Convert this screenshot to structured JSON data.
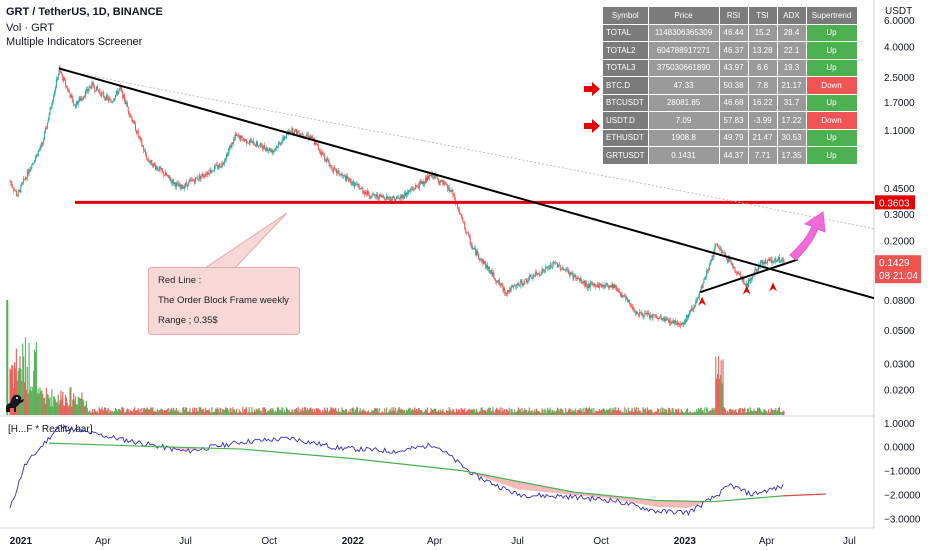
{
  "header": {
    "title": "GRT / TetherUS, 1D, BINANCE",
    "vol_label": "Vol · GRT",
    "screener_label": "Multiple Indicators Screener"
  },
  "indicator": {
    "label": "[H...F * Reality bar]"
  },
  "callout": {
    "line1": "Red Line :",
    "line2": "The Order Block Frame weekly",
    "line3": "Range ; 0.35$"
  },
  "price_axis": {
    "currency": "USDT",
    "ticks": [
      "6.0000",
      "4.0000",
      "2.5000",
      "1.7000",
      "1.1000",
      "0.4500",
      "0.3000",
      "0.2000",
      "0.0800",
      "0.0500",
      "0.0300",
      "0.0200"
    ],
    "red_line_price": "0.3603",
    "last_price": "0.1429",
    "countdown": "08:21:04"
  },
  "indicator_axis": {
    "ticks": [
      "1.0000",
      "0.0000",
      "−1.0000",
      "−2.0000",
      "−3.0000"
    ]
  },
  "time_axis": {
    "labels": [
      "2021",
      "Apr",
      "Jul",
      "Oct",
      "2022",
      "Apr",
      "Jul",
      "Oct",
      "2023",
      "Apr",
      "Jul"
    ]
  },
  "screener": {
    "headers": [
      "Symbol",
      "Price",
      "RSI",
      "TSI",
      "ADX",
      "Supertrend"
    ],
    "rows": [
      {
        "symbol": "TOTAL",
        "price": "1148306365309",
        "rsi": "46.44",
        "tsi": "15.2",
        "adx": "28.4",
        "trend": "Up"
      },
      {
        "symbol": "TOTAL2",
        "price": "604788917271",
        "rsi": "46.37",
        "tsi": "13.28",
        "adx": "22.1",
        "trend": "Up"
      },
      {
        "symbol": "TOTAL3",
        "price": "375030661890",
        "rsi": "43.97",
        "tsi": "6.6",
        "adx": "19.3",
        "trend": "Up"
      },
      {
        "symbol": "BTC.D",
        "price": "47.33",
        "rsi": "50.38",
        "tsi": "7.8",
        "adx": "21.17",
        "trend": "Down"
      },
      {
        "symbol": "BTCUSDT",
        "price": "28081.85",
        "rsi": "46.68",
        "tsi": "16.22",
        "adx": "31.7",
        "trend": "Up"
      },
      {
        "symbol": "USDT.D",
        "price": "7.09",
        "rsi": "57.83",
        "tsi": "-3.99",
        "adx": "17.22",
        "trend": "Down"
      },
      {
        "symbol": "ETHUSDT",
        "price": "1908.8",
        "rsi": "49.79",
        "tsi": "21.47",
        "adx": "30.53",
        "trend": "Up"
      },
      {
        "symbol": "GRTUSDT",
        "price": "0.1431",
        "rsi": "44.37",
        "tsi": "7.71",
        "adx": "17.35",
        "trend": "Up"
      }
    ]
  },
  "colors": {
    "up_candle": "#26a69a",
    "down_candle": "#ef5350",
    "volume_up": "#4caf50",
    "volume_down": "#ef5350",
    "red_line": "#e60000",
    "trendline": "#000000",
    "arrow_pink": "#f06bd8",
    "indicator_blue": "#2f2fd6",
    "indicator_green": "#4caf50",
    "indicator_fill": "#f4a3a3"
  },
  "chart_data": {
    "type": "candlestick",
    "title": "GRT / TetherUS, 1D, BINANCE",
    "scale": "log",
    "y_range": [
      0.015,
      8
    ],
    "x_labels": [
      "2021",
      "Apr",
      "Jul",
      "Oct",
      "2022",
      "Apr",
      "Jul",
      "Oct",
      "2023",
      "Apr",
      "Jul"
    ],
    "price_path": [
      {
        "date": "2020-12-20",
        "close": 0.5
      },
      {
        "date": "2020-12-28",
        "close": 0.4
      },
      {
        "date": "2021-01-10",
        "close": 0.6
      },
      {
        "date": "2021-01-25",
        "close": 0.9
      },
      {
        "date": "2021-02-12",
        "close": 2.8
      },
      {
        "date": "2021-03-01",
        "close": 1.6
      },
      {
        "date": "2021-03-20",
        "close": 2.2
      },
      {
        "date": "2021-04-10",
        "close": 1.7
      },
      {
        "date": "2021-04-20",
        "close": 2.1
      },
      {
        "date": "2021-05-20",
        "close": 0.7
      },
      {
        "date": "2021-06-25",
        "close": 0.45
      },
      {
        "date": "2021-08-10",
        "close": 0.65
      },
      {
        "date": "2021-08-25",
        "close": 1.0
      },
      {
        "date": "2021-10-05",
        "close": 0.8
      },
      {
        "date": "2021-10-25",
        "close": 1.1
      },
      {
        "date": "2021-11-15",
        "close": 1.0
      },
      {
        "date": "2021-12-10",
        "close": 0.6
      },
      {
        "date": "2022-01-20",
        "close": 0.4
      },
      {
        "date": "2022-02-20",
        "close": 0.38
      },
      {
        "date": "2022-03-30",
        "close": 0.55
      },
      {
        "date": "2022-04-20",
        "close": 0.42
      },
      {
        "date": "2022-05-12",
        "close": 0.18
      },
      {
        "date": "2022-06-18",
        "close": 0.09
      },
      {
        "date": "2022-08-12",
        "close": 0.14
      },
      {
        "date": "2022-09-15",
        "close": 0.1
      },
      {
        "date": "2022-10-15",
        "close": 0.1
      },
      {
        "date": "2022-11-10",
        "close": 0.065
      },
      {
        "date": "2022-12-30",
        "close": 0.055
      },
      {
        "date": "2023-01-15",
        "close": 0.08
      },
      {
        "date": "2023-02-05",
        "close": 0.19
      },
      {
        "date": "2023-03-10",
        "close": 0.1
      },
      {
        "date": "2023-03-25",
        "close": 0.14
      },
      {
        "date": "2023-04-12",
        "close": 0.15
      },
      {
        "date": "2023-04-20",
        "close": 0.1429
      }
    ],
    "horizontal_line": {
      "price": 0.3603,
      "label": "0.3603"
    },
    "indicator": {
      "label": "[H...F * Reality bar]",
      "y_range": [
        -3.2,
        1.2
      ],
      "y_ticks": [
        1,
        0,
        -1,
        -2,
        -3
      ],
      "blue_path": [
        {
          "date": "2020-12-20",
          "value": -2.6
        },
        {
          "date": "2021-01-05",
          "value": -0.8
        },
        {
          "date": "2021-02-12",
          "value": 0.85
        },
        {
          "date": "2021-03-01",
          "value": 0.7
        },
        {
          "date": "2021-05-20",
          "value": 0.1
        },
        {
          "date": "2021-07-01",
          "value": -0.2
        },
        {
          "date": "2021-09-01",
          "value": 0.2
        },
        {
          "date": "2021-10-25",
          "value": 0.35
        },
        {
          "date": "2021-12-15",
          "value": -0.05
        },
        {
          "date": "2022-02-20",
          "value": -0.2
        },
        {
          "date": "2022-04-01",
          "value": 0.1
        },
        {
          "date": "2022-05-15",
          "value": -1.2
        },
        {
          "date": "2022-07-01",
          "value": -2.0
        },
        {
          "date": "2022-09-01",
          "value": -2.1
        },
        {
          "date": "2022-10-15",
          "value": -2.25
        },
        {
          "date": "2022-12-01",
          "value": -2.7
        },
        {
          "date": "2023-01-05",
          "value": -2.75
        },
        {
          "date": "2023-02-05",
          "value": -2.05
        },
        {
          "date": "2023-02-20",
          "value": -1.6
        },
        {
          "date": "2023-03-15",
          "value": -2.0
        },
        {
          "date": "2023-04-20",
          "value": -1.65
        }
      ],
      "green_path": [
        {
          "date": "2021-02-01",
          "value": 0.15
        },
        {
          "date": "2021-06-01",
          "value": 0.0
        },
        {
          "date": "2021-09-01",
          "value": -0.1
        },
        {
          "date": "2022-01-01",
          "value": -0.5
        },
        {
          "date": "2022-05-01",
          "value": -1.0
        },
        {
          "date": "2022-09-01",
          "value": -1.9
        },
        {
          "date": "2022-12-01",
          "value": -2.25
        },
        {
          "date": "2023-02-01",
          "value": -2.3
        },
        {
          "date": "2023-04-20",
          "value": -2.05
        },
        {
          "date": "2023-06-05",
          "value": -1.98
        }
      ]
    }
  }
}
